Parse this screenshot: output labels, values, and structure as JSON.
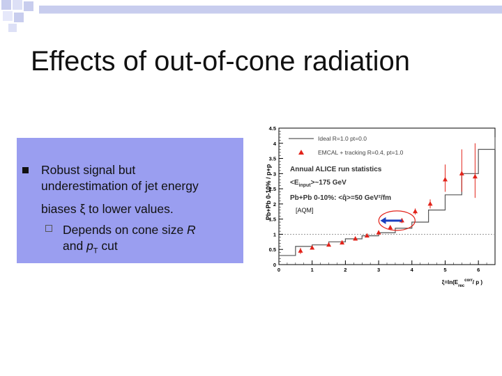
{
  "slide": {
    "title": "Effects of out-of-cone radiation",
    "bullet": {
      "line1": "Robust signal but",
      "line2": "underestimation of jet energy",
      "line3_prefix": "biases ",
      "xi": "ξ",
      "line3_suffix": " to lower values.",
      "sub_line1": "Depends on cone size ",
      "sub_R": "R",
      "sub_line2_prefix": "and ",
      "sub_p": "p",
      "sub_T": "T",
      "sub_line2_suffix": " cut"
    }
  },
  "chart_data": {
    "type": "line",
    "xlabel_main": "ξ=ln(E",
    "xlabel_sup": "corr",
    "xlabel_sub": "rec",
    "xlabel_end": "/ p )",
    "ylabel": "Pb+Pb 0-10% / p+p",
    "xlim": [
      0,
      6.5
    ],
    "ylim": [
      0,
      4.5
    ],
    "xticks": [
      "0",
      "1",
      "2",
      "3",
      "4",
      "5",
      "6"
    ],
    "yticks": [
      "0",
      "0.5",
      "1",
      "1.5",
      "2",
      "2.5",
      "3",
      "3.5",
      "4",
      "4.5"
    ],
    "reference_line": 1.0,
    "legend": [
      {
        "label": "Ideal R=1.0 pt=0.0",
        "marker": "line"
      },
      {
        "label": "EMCAL + tracking R=0.4, pt=1.0",
        "marker": "triangle"
      }
    ],
    "annotations": {
      "run_stats": "Annual ALICE run statistics",
      "einput_pre": "<E",
      "einput_sub": "input",
      "einput_post": ">~175 GeV",
      "collision_pre": "Pb+Pb 0-10%: <",
      "qhat": "q̂",
      "collision_post": ">=50 GeV²/fm",
      "ref": "[AQM]"
    },
    "series": [
      {
        "name": "Ideal R=1.0 pt=0.0",
        "style": "step",
        "x": [
          0,
          0.5,
          1.0,
          1.5,
          2.0,
          2.5,
          3.0,
          3.5,
          4.0,
          4.5,
          5.0,
          5.5,
          6.0,
          6.5
        ],
        "values": [
          0.3,
          0.6,
          0.65,
          0.75,
          0.85,
          0.95,
          1.05,
          1.2,
          1.4,
          1.8,
          2.3,
          3.0,
          3.8,
          4.2
        ]
      },
      {
        "name": "EMCAL + tracking R=0.4, pt=1.0",
        "style": "points",
        "x": [
          0.65,
          1.0,
          1.5,
          1.9,
          2.3,
          2.65,
          3.0,
          3.35,
          3.7,
          4.1,
          4.55,
          5.0,
          5.5,
          5.9
        ],
        "values": [
          0.45,
          0.55,
          0.65,
          0.72,
          0.85,
          0.95,
          1.05,
          1.22,
          1.45,
          1.75,
          2.0,
          2.8,
          3.0,
          2.9
        ],
        "err_hi": [
          0.1,
          0.05,
          0.05,
          0.05,
          0.05,
          0.05,
          0.05,
          0.06,
          0.08,
          0.1,
          0.15,
          0.5,
          0.8,
          1.1
        ],
        "err_lo": [
          0.1,
          0.05,
          0.05,
          0.05,
          0.05,
          0.05,
          0.05,
          0.06,
          0.08,
          0.1,
          0.15,
          0.4,
          0.6,
          0.7
        ]
      }
    ],
    "shift_arrow": {
      "from_x": 3.7,
      "to_x": 3.05,
      "y": 1.45
    },
    "ellipse_center": {
      "x": 3.55,
      "y": 1.45
    }
  }
}
